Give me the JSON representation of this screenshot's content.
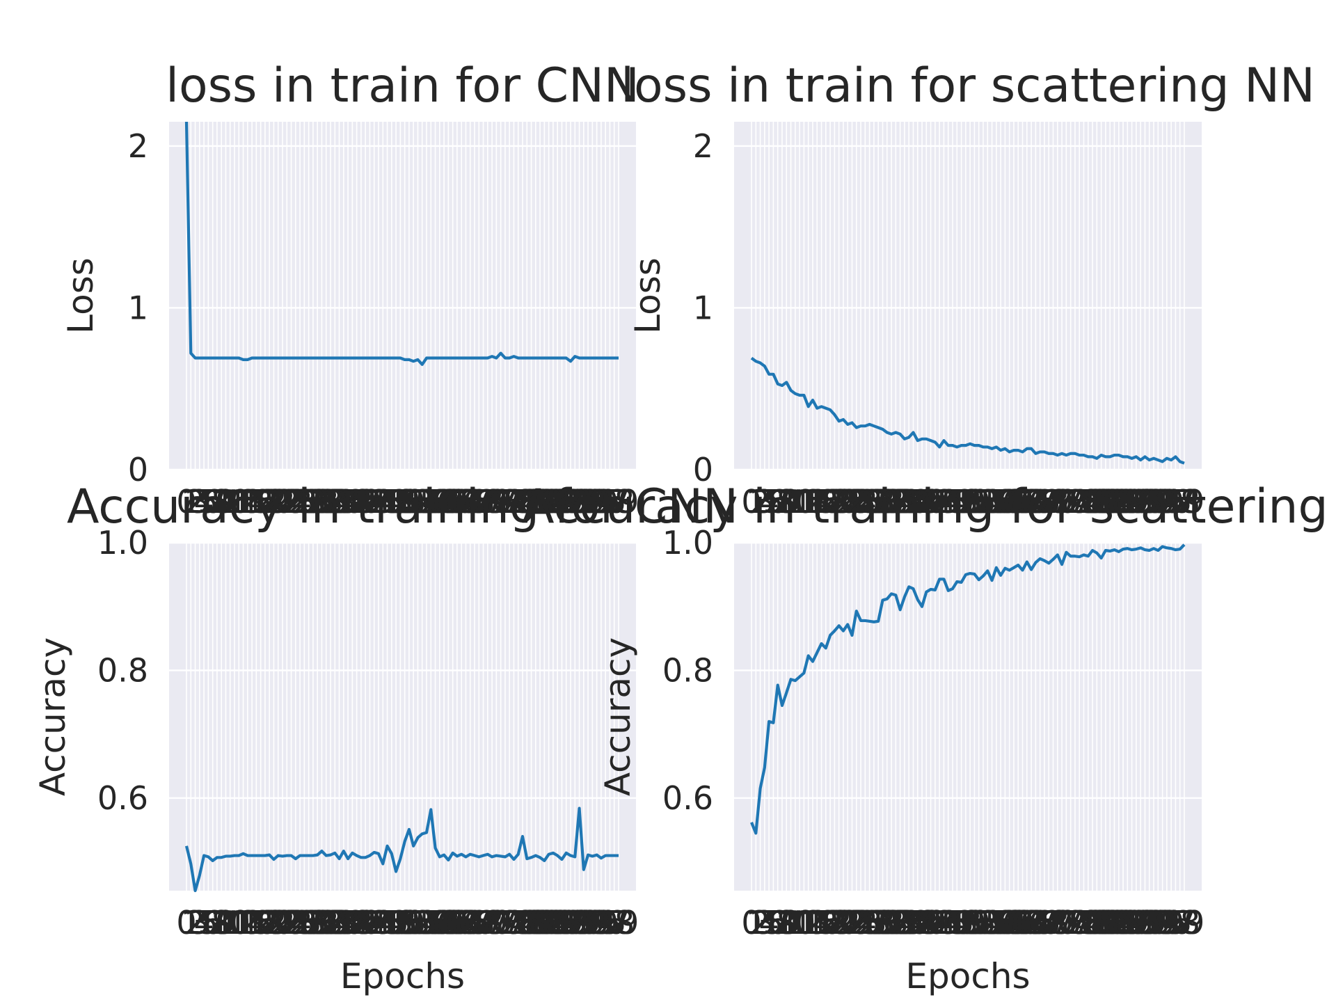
{
  "colors": {
    "axes_face": "#eaeaf2",
    "grid": "#ffffff",
    "line": "#1f77b4",
    "text": "#262626"
  },
  "chart_data": [
    {
      "type": "line",
      "title": "loss in train for CNN",
      "xlabel": "Epochs",
      "ylabel": "Loss",
      "x_range": [
        0,
        99
      ],
      "ylim": [
        0,
        2.15
      ],
      "y_ticks": [
        "0",
        "1",
        "2"
      ],
      "grid": true,
      "series": [
        {
          "values": [
            2.31,
            0.72,
            0.69,
            0.69,
            0.69,
            0.69,
            0.69,
            0.69,
            0.69,
            0.69,
            0.69,
            0.69,
            0.69,
            0.68,
            0.68,
            0.69,
            0.69,
            0.69,
            0.69,
            0.69,
            0.69,
            0.69,
            0.69,
            0.69,
            0.69,
            0.69,
            0.69,
            0.69,
            0.69,
            0.69,
            0.69,
            0.69,
            0.69,
            0.69,
            0.69,
            0.69,
            0.69,
            0.69,
            0.69,
            0.69,
            0.69,
            0.69,
            0.69,
            0.69,
            0.69,
            0.69,
            0.69,
            0.69,
            0.69,
            0.69,
            0.68,
            0.68,
            0.67,
            0.68,
            0.65,
            0.69,
            0.69,
            0.69,
            0.69,
            0.69,
            0.69,
            0.69,
            0.69,
            0.69,
            0.69,
            0.69,
            0.69,
            0.69,
            0.69,
            0.69,
            0.7,
            0.69,
            0.72,
            0.69,
            0.69,
            0.7,
            0.69,
            0.69,
            0.69,
            0.69,
            0.69,
            0.69,
            0.69,
            0.69,
            0.69,
            0.69,
            0.69,
            0.69,
            0.67,
            0.7,
            0.69,
            0.69,
            0.69,
            0.69,
            0.69,
            0.69,
            0.69,
            0.69,
            0.69,
            0.69
          ]
        }
      ]
    },
    {
      "type": "line",
      "title": "loss in train for scattering NN",
      "xlabel": "Epochs",
      "ylabel": "Loss",
      "x_range": [
        0,
        99
      ],
      "ylim": [
        0,
        2.15
      ],
      "y_ticks": [
        "0",
        "1",
        "2"
      ],
      "grid": true,
      "series": [
        {
          "values": [
            0.69,
            0.67,
            0.66,
            0.64,
            0.59,
            0.59,
            0.53,
            0.52,
            0.54,
            0.49,
            0.47,
            0.46,
            0.46,
            0.39,
            0.43,
            0.38,
            0.39,
            0.38,
            0.37,
            0.34,
            0.3,
            0.31,
            0.28,
            0.29,
            0.26,
            0.27,
            0.27,
            0.28,
            0.27,
            0.26,
            0.25,
            0.23,
            0.22,
            0.23,
            0.22,
            0.19,
            0.2,
            0.23,
            0.18,
            0.19,
            0.19,
            0.18,
            0.17,
            0.14,
            0.18,
            0.15,
            0.15,
            0.14,
            0.15,
            0.15,
            0.16,
            0.15,
            0.15,
            0.14,
            0.14,
            0.13,
            0.14,
            0.12,
            0.13,
            0.11,
            0.12,
            0.12,
            0.11,
            0.13,
            0.13,
            0.1,
            0.11,
            0.11,
            0.1,
            0.1,
            0.09,
            0.1,
            0.09,
            0.1,
            0.1,
            0.09,
            0.09,
            0.08,
            0.08,
            0.07,
            0.09,
            0.08,
            0.08,
            0.09,
            0.09,
            0.08,
            0.08,
            0.07,
            0.08,
            0.06,
            0.08,
            0.06,
            0.07,
            0.06,
            0.05,
            0.07,
            0.06,
            0.08,
            0.05,
            0.04
          ]
        }
      ]
    },
    {
      "type": "line",
      "title": "Accuracy in training for CNN",
      "xlabel": "Epochs",
      "ylabel": "Accuracy",
      "x_range": [
        0,
        99
      ],
      "ylim": [
        0.455,
        1.0
      ],
      "y_ticks": [
        "0.6",
        "0.8",
        "1.0"
      ],
      "grid": true,
      "series": [
        {
          "values": [
            0.525,
            0.497,
            0.455,
            0.479,
            0.51,
            0.508,
            0.502,
            0.507,
            0.507,
            0.509,
            0.509,
            0.51,
            0.51,
            0.513,
            0.51,
            0.51,
            0.51,
            0.51,
            0.51,
            0.511,
            0.504,
            0.51,
            0.509,
            0.51,
            0.51,
            0.505,
            0.51,
            0.51,
            0.51,
            0.51,
            0.511,
            0.517,
            0.51,
            0.511,
            0.514,
            0.505,
            0.517,
            0.505,
            0.514,
            0.51,
            0.507,
            0.507,
            0.51,
            0.515,
            0.513,
            0.497,
            0.525,
            0.513,
            0.485,
            0.505,
            0.532,
            0.551,
            0.525,
            0.538,
            0.544,
            0.546,
            0.582,
            0.522,
            0.508,
            0.511,
            0.503,
            0.514,
            0.509,
            0.512,
            0.508,
            0.512,
            0.51,
            0.508,
            0.51,
            0.512,
            0.508,
            0.51,
            0.509,
            0.508,
            0.512,
            0.504,
            0.512,
            0.54,
            0.505,
            0.507,
            0.51,
            0.507,
            0.502,
            0.512,
            0.514,
            0.51,
            0.504,
            0.514,
            0.51,
            0.508,
            0.584,
            0.488,
            0.511,
            0.509,
            0.511,
            0.506,
            0.51,
            0.51,
            0.51,
            0.51
          ]
        }
      ]
    },
    {
      "type": "line",
      "title": "Accuracy in training for scattering NN",
      "xlabel": "Epochs",
      "ylabel": "Accuracy",
      "x_range": [
        0,
        99
      ],
      "ylim": [
        0.455,
        1.0
      ],
      "y_ticks": [
        "0.6",
        "0.8",
        "1.0"
      ],
      "grid": true,
      "series": [
        {
          "values": [
            0.562,
            0.545,
            0.615,
            0.648,
            0.72,
            0.718,
            0.777,
            0.745,
            0.765,
            0.786,
            0.784,
            0.79,
            0.796,
            0.823,
            0.814,
            0.828,
            0.842,
            0.835,
            0.855,
            0.862,
            0.87,
            0.862,
            0.872,
            0.855,
            0.893,
            0.878,
            0.878,
            0.877,
            0.876,
            0.877,
            0.91,
            0.912,
            0.92,
            0.918,
            0.895,
            0.915,
            0.931,
            0.928,
            0.911,
            0.9,
            0.923,
            0.927,
            0.926,
            0.943,
            0.943,
            0.925,
            0.928,
            0.939,
            0.938,
            0.95,
            0.952,
            0.951,
            0.942,
            0.948,
            0.956,
            0.941,
            0.961,
            0.949,
            0.96,
            0.957,
            0.961,
            0.965,
            0.957,
            0.97,
            0.958,
            0.969,
            0.975,
            0.972,
            0.968,
            0.974,
            0.981,
            0.966,
            0.985,
            0.979,
            0.979,
            0.978,
            0.981,
            0.979,
            0.988,
            0.984,
            0.976,
            0.988,
            0.987,
            0.989,
            0.986,
            0.99,
            0.991,
            0.989,
            0.99,
            0.992,
            0.989,
            0.988,
            0.991,
            0.988,
            0.994,
            0.992,
            0.991,
            0.989,
            0.99,
            0.997
          ]
        }
      ]
    }
  ]
}
